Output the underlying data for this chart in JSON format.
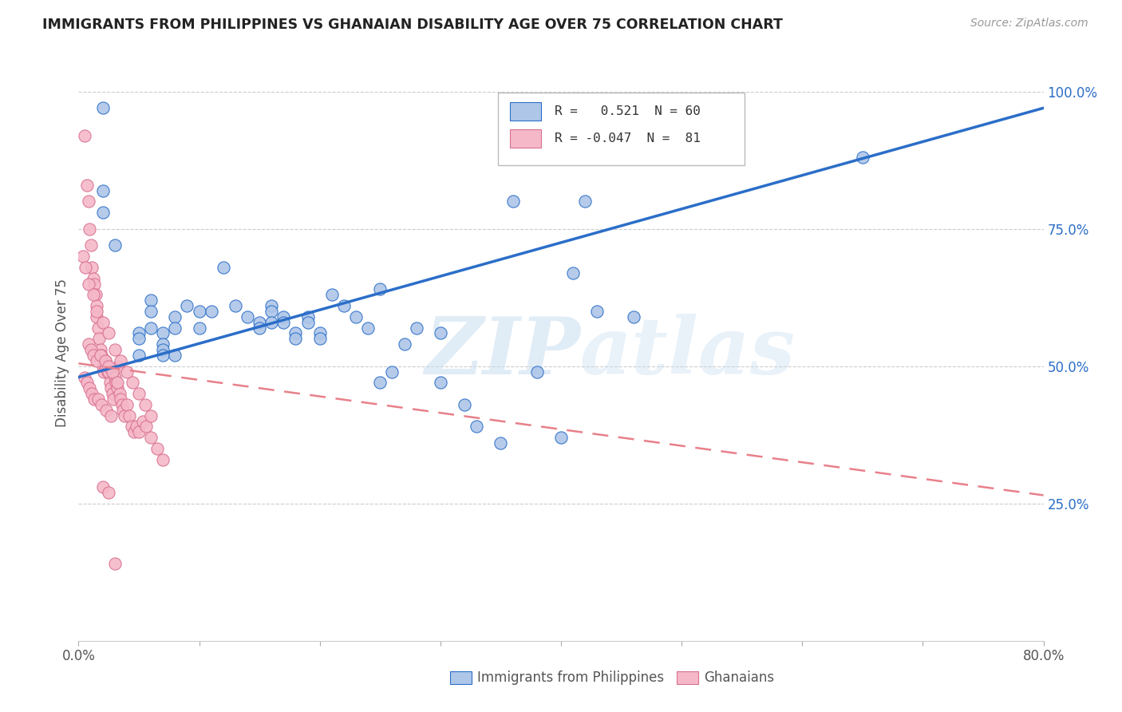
{
  "title": "IMMIGRANTS FROM PHILIPPINES VS GHANAIAN DISABILITY AGE OVER 75 CORRELATION CHART",
  "source": "Source: ZipAtlas.com",
  "ylabel": "Disability Age Over 75",
  "xmin": 0.0,
  "xmax": 0.8,
  "ymin": 0.0,
  "ymax": 1.05,
  "yticks": [
    0.25,
    0.5,
    0.75,
    1.0
  ],
  "ytick_labels": [
    "25.0%",
    "50.0%",
    "75.0%",
    "100.0%"
  ],
  "blue_color": "#aec6e8",
  "pink_color": "#f5b8c8",
  "blue_line_color": "#2b6ec8",
  "pink_line_color": "#e8808a",
  "watermark_zip": "ZIP",
  "watermark_atlas": "atlas",
  "phil_line_x0": 0.0,
  "phil_line_y0": 0.48,
  "phil_line_x1": 0.8,
  "phil_line_y1": 0.97,
  "ghana_line_x0": 0.0,
  "ghana_line_y0": 0.505,
  "ghana_line_x1": 0.8,
  "ghana_line_y1": 0.265,
  "philippines_x": [
    0.37,
    0.42,
    0.36,
    0.02,
    0.02,
    0.02,
    0.03,
    0.05,
    0.05,
    0.05,
    0.06,
    0.06,
    0.06,
    0.07,
    0.07,
    0.07,
    0.07,
    0.08,
    0.08,
    0.08,
    0.09,
    0.1,
    0.1,
    0.11,
    0.12,
    0.13,
    0.14,
    0.15,
    0.15,
    0.16,
    0.16,
    0.17,
    0.17,
    0.18,
    0.18,
    0.19,
    0.19,
    0.2,
    0.21,
    0.22,
    0.23,
    0.24,
    0.25,
    0.26,
    0.28,
    0.3,
    0.32,
    0.33,
    0.35,
    0.38,
    0.4,
    0.41,
    0.43,
    0.46,
    0.65,
    0.27,
    0.2,
    0.16,
    0.25,
    0.3
  ],
  "philippines_y": [
    0.93,
    0.8,
    0.8,
    0.97,
    0.82,
    0.78,
    0.72,
    0.56,
    0.55,
    0.52,
    0.62,
    0.6,
    0.57,
    0.56,
    0.54,
    0.53,
    0.52,
    0.59,
    0.57,
    0.52,
    0.61,
    0.6,
    0.57,
    0.6,
    0.68,
    0.61,
    0.59,
    0.58,
    0.57,
    0.61,
    0.6,
    0.59,
    0.58,
    0.56,
    0.55,
    0.59,
    0.58,
    0.56,
    0.63,
    0.61,
    0.59,
    0.57,
    0.64,
    0.49,
    0.57,
    0.56,
    0.43,
    0.39,
    0.36,
    0.49,
    0.37,
    0.67,
    0.6,
    0.59,
    0.88,
    0.54,
    0.55,
    0.58,
    0.47,
    0.47
  ],
  "ghana_x": [
    0.005,
    0.007,
    0.008,
    0.009,
    0.01,
    0.011,
    0.012,
    0.013,
    0.014,
    0.015,
    0.015,
    0.016,
    0.017,
    0.018,
    0.019,
    0.02,
    0.021,
    0.022,
    0.023,
    0.024,
    0.025,
    0.026,
    0.027,
    0.028,
    0.029,
    0.03,
    0.031,
    0.032,
    0.033,
    0.034,
    0.035,
    0.036,
    0.037,
    0.038,
    0.04,
    0.042,
    0.044,
    0.046,
    0.048,
    0.05,
    0.053,
    0.056,
    0.06,
    0.065,
    0.07,
    0.008,
    0.01,
    0.012,
    0.015,
    0.018,
    0.022,
    0.025,
    0.028,
    0.032,
    0.005,
    0.007,
    0.009,
    0.011,
    0.013,
    0.016,
    0.019,
    0.023,
    0.027,
    0.004,
    0.006,
    0.008,
    0.012,
    0.015,
    0.02,
    0.025,
    0.03,
    0.035,
    0.04,
    0.045,
    0.05,
    0.055,
    0.06,
    0.02,
    0.025,
    0.03
  ],
  "ghana_y": [
    0.92,
    0.83,
    0.8,
    0.75,
    0.72,
    0.68,
    0.66,
    0.65,
    0.63,
    0.61,
    0.59,
    0.57,
    0.55,
    0.53,
    0.52,
    0.5,
    0.49,
    0.51,
    0.5,
    0.49,
    0.49,
    0.47,
    0.46,
    0.45,
    0.44,
    0.48,
    0.47,
    0.46,
    0.5,
    0.45,
    0.44,
    0.43,
    0.42,
    0.41,
    0.43,
    0.41,
    0.39,
    0.38,
    0.39,
    0.38,
    0.4,
    0.39,
    0.37,
    0.35,
    0.33,
    0.54,
    0.53,
    0.52,
    0.51,
    0.52,
    0.51,
    0.5,
    0.49,
    0.47,
    0.48,
    0.47,
    0.46,
    0.45,
    0.44,
    0.44,
    0.43,
    0.42,
    0.41,
    0.7,
    0.68,
    0.65,
    0.63,
    0.6,
    0.58,
    0.56,
    0.53,
    0.51,
    0.49,
    0.47,
    0.45,
    0.43,
    0.41,
    0.28,
    0.27,
    0.14
  ]
}
